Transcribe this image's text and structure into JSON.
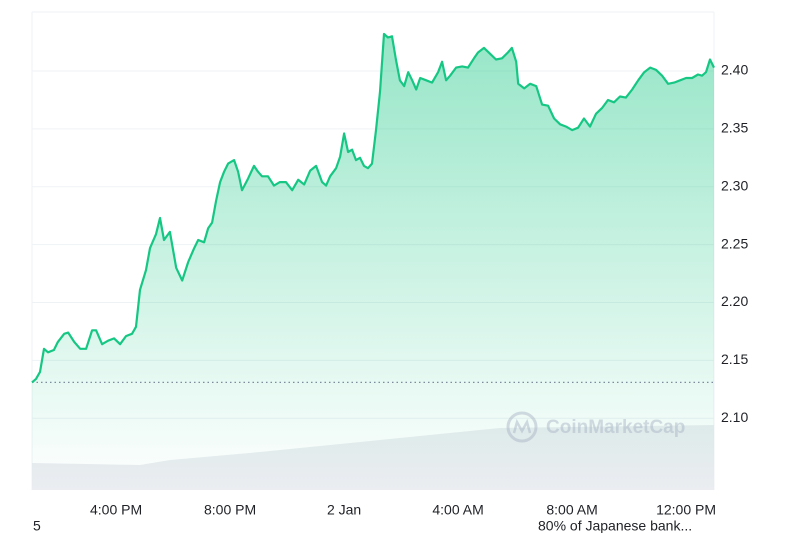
{
  "chart_data": {
    "type": "line",
    "color": "#16c784",
    "watermark": "CoinMarketCap",
    "annotations": [
      "5",
      "80% of Japanese bank..."
    ],
    "reference_line": 2.131,
    "grid": true,
    "xlim": [
      1.05,
      24.98
    ],
    "xticks": [
      {
        "value": 4,
        "label": "4:00 PM"
      },
      {
        "value": 8,
        "label": "8:00 PM"
      },
      {
        "value": 12,
        "label": "2 Jan"
      },
      {
        "value": 16,
        "label": "4:00 AM"
      },
      {
        "value": 20,
        "label": "8:00 AM"
      },
      {
        "value": 24,
        "label": "12:00 PM"
      }
    ],
    "ylim": [
      2.038,
      2.451
    ],
    "yticks": [
      {
        "value": 2.1,
        "label": "2.10"
      },
      2.15,
      {
        "value": 2.2,
        "label": "2.20"
      },
      2.25,
      {
        "value": 2.3,
        "label": "2.30"
      },
      2.35,
      {
        "value": 2.4,
        "label": "2.40"
      }
    ],
    "x": [
      1.05,
      1.19,
      1.33,
      1.47,
      1.61,
      1.82,
      1.96,
      2.18,
      2.32,
      2.53,
      2.74,
      2.95,
      3.16,
      3.3,
      3.51,
      3.72,
      3.93,
      4.14,
      4.35,
      4.56,
      4.7,
      4.84,
      5.05,
      5.19,
      5.4,
      5.54,
      5.68,
      5.89,
      6.11,
      6.32,
      6.53,
      6.74,
      6.88,
      7.09,
      7.23,
      7.37,
      7.51,
      7.65,
      7.79,
      7.93,
      8.14,
      8.28,
      8.42,
      8.63,
      8.84,
      8.98,
      9.12,
      9.33,
      9.54,
      9.75,
      9.96,
      10.18,
      10.39,
      10.6,
      10.81,
      11.02,
      11.23,
      11.37,
      11.51,
      11.72,
      11.86,
      12.0,
      12.14,
      12.28,
      12.42,
      12.56,
      12.7,
      12.84,
      12.98,
      13.12,
      13.26,
      13.4,
      13.54,
      13.68,
      13.82,
      13.96,
      14.11,
      14.25,
      14.39,
      14.53,
      14.67,
      14.88,
      15.09,
      15.3,
      15.44,
      15.58,
      15.72,
      15.93,
      16.14,
      16.35,
      16.56,
      16.7,
      16.91,
      17.12,
      17.33,
      17.54,
      17.75,
      17.89,
      18.04,
      18.11,
      18.32,
      18.53,
      18.74,
      18.95,
      19.16,
      19.37,
      19.58,
      19.79,
      20.0,
      20.21,
      20.42,
      20.63,
      20.84,
      21.05,
      21.26,
      21.47,
      21.68,
      21.89,
      22.11,
      22.32,
      22.53,
      22.74,
      22.95,
      23.16,
      23.37,
      23.58,
      23.79,
      24.0,
      24.21,
      24.42,
      24.56,
      24.7,
      24.84,
      24.98
    ],
    "values": [
      2.131,
      2.134,
      2.14,
      2.16,
      2.157,
      2.159,
      2.166,
      2.173,
      2.174,
      2.166,
      2.16,
      2.16,
      2.176,
      2.176,
      2.164,
      2.167,
      2.169,
      2.164,
      2.171,
      2.173,
      2.179,
      2.211,
      2.228,
      2.247,
      2.259,
      2.273,
      2.254,
      2.261,
      2.23,
      2.219,
      2.235,
      2.247,
      2.254,
      2.252,
      2.264,
      2.269,
      2.288,
      2.304,
      2.313,
      2.32,
      2.323,
      2.313,
      2.297,
      2.307,
      2.318,
      2.313,
      2.309,
      2.309,
      2.301,
      2.304,
      2.304,
      2.297,
      2.306,
      2.302,
      2.314,
      2.318,
      2.304,
      2.301,
      2.309,
      2.316,
      2.326,
      2.346,
      2.33,
      2.332,
      2.323,
      2.325,
      2.318,
      2.316,
      2.32,
      2.349,
      2.382,
      2.432,
      2.429,
      2.43,
      2.41,
      2.392,
      2.387,
      2.399,
      2.392,
      2.384,
      2.394,
      2.392,
      2.39,
      2.399,
      2.408,
      2.392,
      2.396,
      2.403,
      2.404,
      2.403,
      2.411,
      2.416,
      2.42,
      2.415,
      2.41,
      2.411,
      2.416,
      2.42,
      2.408,
      2.389,
      2.385,
      2.389,
      2.387,
      2.371,
      2.37,
      2.359,
      2.354,
      2.352,
      2.349,
      2.351,
      2.359,
      2.352,
      2.363,
      2.368,
      2.375,
      2.373,
      2.378,
      2.377,
      2.384,
      2.392,
      2.399,
      2.403,
      2.401,
      2.396,
      2.389,
      2.39,
      2.392,
      2.394,
      2.394,
      2.397,
      2.396,
      2.399,
      2.41,
      2.403
    ]
  }
}
